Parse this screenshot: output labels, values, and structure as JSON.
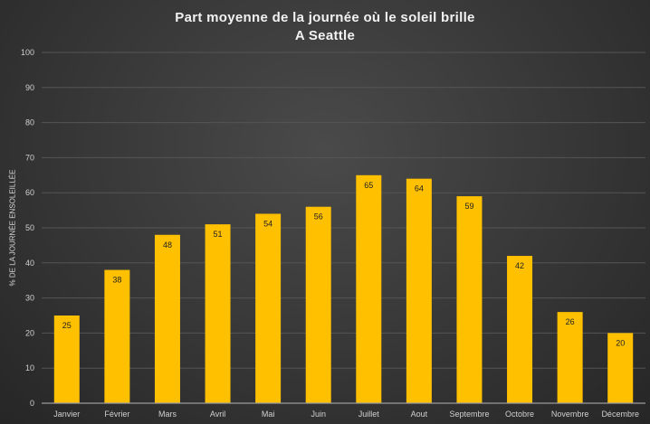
{
  "chart_data": {
    "type": "bar",
    "title": "Part moyenne de la journée où le soleil brille",
    "subtitle": "A Seattle",
    "xlabel": "",
    "ylabel": "% DE LA JOURNÉE ENSOLEILLÉE",
    "categories": [
      "Janvier",
      "Février",
      "Mars",
      "Avril",
      "Mai",
      "Juin",
      "Juillet",
      "Aout",
      "Septembre",
      "Octobre",
      "Novembre",
      "Décembre"
    ],
    "values": [
      25,
      38,
      48,
      51,
      54,
      56,
      65,
      64,
      59,
      42,
      26,
      20
    ],
    "ylim": [
      0,
      100
    ],
    "yticks": [
      "0",
      "10",
      "20",
      "30",
      "40",
      "50",
      "60",
      "70",
      "80",
      "90",
      "100"
    ],
    "grid": true,
    "bar_color": "#ffc000",
    "legend": "none"
  }
}
